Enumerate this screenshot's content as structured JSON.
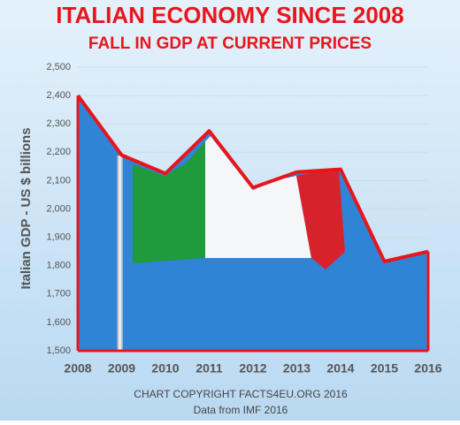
{
  "chart_data": {
    "type": "area",
    "title": "ITALIAN ECONOMY SINCE 2008",
    "subtitle": "FALL IN GDP AT CURRENT PRICES",
    "y_label": "Italian GDP - US $ billions",
    "footer": [
      "CHART COPYRIGHT FACTS4EU.ORG 2016",
      "Data from IMF 2016"
    ],
    "x": [
      2008,
      2009,
      2010,
      2011,
      2012,
      2013,
      2014,
      2015,
      2016
    ],
    "series": [
      {
        "name": "Italian GDP",
        "color": "#e8161b",
        "values": [
          2400,
          2190,
          2125,
          2275,
          2075,
          2130,
          2140,
          1815,
          1850
        ]
      }
    ],
    "area_color": "#2f84d6",
    "xlim": [
      2008,
      2016
    ],
    "xticks": [
      2008,
      2009,
      2010,
      2011,
      2012,
      2013,
      2014,
      2015,
      2016
    ],
    "ylim": [
      1500,
      2500
    ],
    "yticks": [
      {
        "value": 1500,
        "label": "1,500"
      },
      {
        "value": 1600,
        "label": "1,600"
      },
      {
        "value": 1700,
        "label": "1,700"
      },
      {
        "value": 1800,
        "label": "1,800"
      },
      {
        "value": 1900,
        "label": "1,900"
      },
      {
        "value": 2000,
        "label": "2,000"
      },
      {
        "value": 2100,
        "label": "2,100"
      },
      {
        "value": 2200,
        "label": "2,200"
      },
      {
        "value": 2300,
        "label": "2,300"
      },
      {
        "value": 2400,
        "label": "2,400"
      },
      {
        "value": 2500,
        "label": "2,500"
      }
    ],
    "grid": true
  }
}
